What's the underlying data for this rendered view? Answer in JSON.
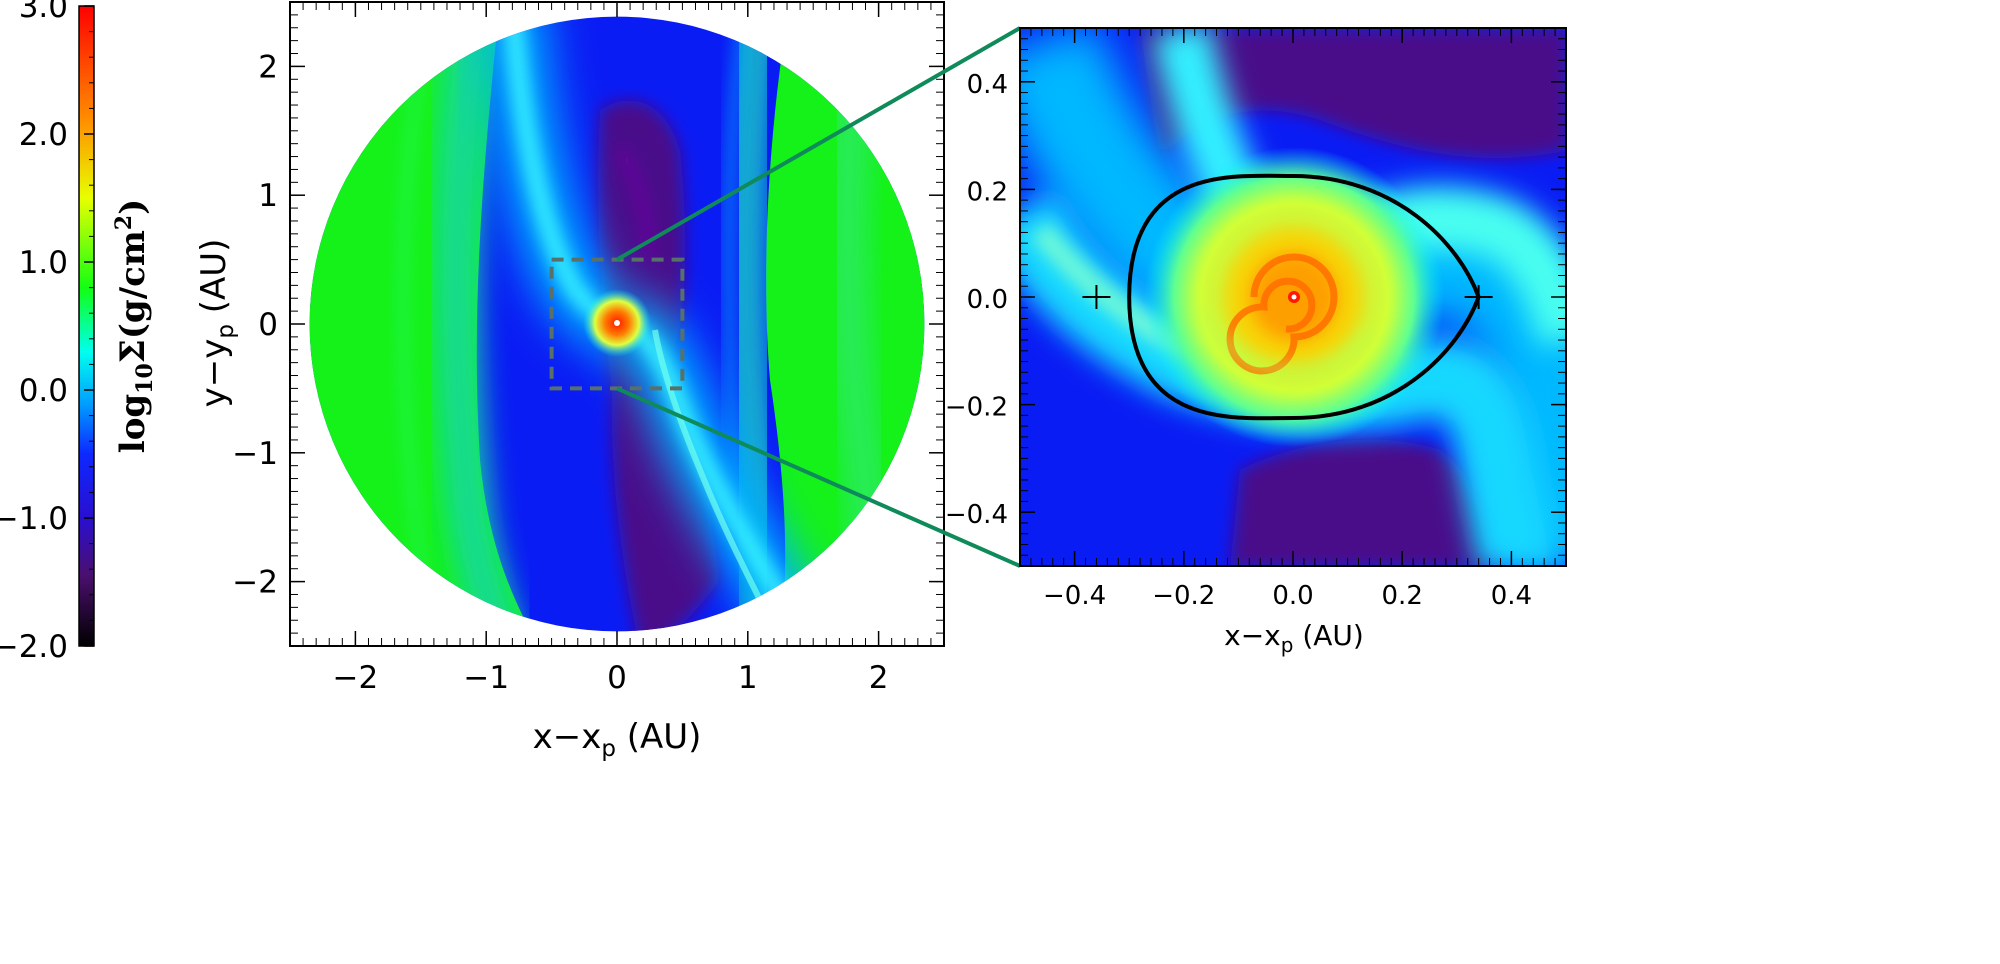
{
  "colorbar": {
    "label_prefix": "log",
    "label_sub": "10",
    "label_main": "Σ(g/cm",
    "label_sup": "2",
    "label_suffix": ")",
    "ticks": [
      "3.0",
      "2.0",
      "1.0",
      "0.0",
      "−1.0",
      "−2.0"
    ],
    "range": [
      -2.0,
      3.0
    ],
    "colormap": [
      "#000000",
      "#4a0f6e",
      "#2a0fd0",
      "#0d28ff",
      "#00a0ff",
      "#00ffee",
      "#12ff12",
      "#e8ff00",
      "#ff9000",
      "#ff0000"
    ]
  },
  "chart_data": [
    {
      "type": "heatmap",
      "panel": "full-disk",
      "xlabel_main": "x−x",
      "xlabel_sub": "p",
      "xlabel_unit": " (AU)",
      "ylabel_main": "y−y",
      "ylabel_sub": "p",
      "ylabel_unit": " (AU)",
      "xlim": [
        -2.5,
        2.5
      ],
      "ylim": [
        -2.5,
        2.5
      ],
      "xticks": [
        -2,
        -1,
        0,
        1,
        2
      ],
      "xtick_labels": [
        "−2",
        "−1",
        "0",
        "1",
        "2"
      ],
      "yticks": [
        -2,
        -1,
        0,
        1,
        2
      ],
      "ytick_labels": [
        "−2",
        "−1",
        "0",
        "1",
        "2"
      ],
      "disk_radius": 2.35,
      "zoom_box": {
        "x": [
          -0.5,
          0.5
        ],
        "y": [
          -0.5,
          0.5
        ]
      }
    },
    {
      "type": "heatmap",
      "panel": "zoom",
      "xlabel_main": "x−x",
      "xlabel_sub": "p",
      "xlabel_unit": " (AU)",
      "xlim": [
        -0.5,
        0.5
      ],
      "ylim": [
        -0.5,
        0.5
      ],
      "xticks": [
        -0.4,
        -0.2,
        0.0,
        0.2,
        0.4
      ],
      "xtick_labels": [
        "−0.4",
        "−0.2",
        "0.0",
        "0.2",
        "0.4"
      ],
      "yticks": [
        -0.4,
        -0.2,
        0.0,
        0.2,
        0.4
      ],
      "ytick_labels": [
        "−0.4",
        "−0.2",
        "0.0",
        "0.2",
        "0.4"
      ],
      "roche_lobe": {
        "x_left": -0.3,
        "x_right": 0.34,
        "half_height": 0.225
      },
      "lagrange_points": [
        [
          -0.36,
          0.0
        ],
        [
          0.34,
          0.0
        ]
      ]
    }
  ]
}
